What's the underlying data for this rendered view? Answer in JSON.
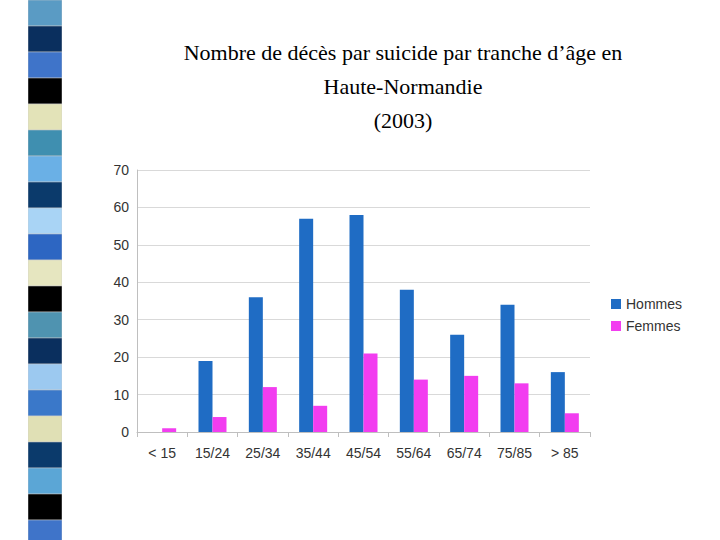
{
  "chart_data": {
    "type": "bar",
    "title": "Nombre de décès par suicide par tranche d’âge en\nHaute-Normandie\n(2003)",
    "categories": [
      "< 15",
      "15/24",
      "25/34",
      "35/44",
      "45/54",
      "55/64",
      "65/74",
      "75/85",
      "> 85"
    ],
    "series": [
      {
        "name": "Hommes",
        "color": "#1f6cc4",
        "values": [
          0,
          19,
          36,
          57,
          58,
          38,
          26,
          34,
          16
        ]
      },
      {
        "name": "Femmes",
        "color": "#f23df0",
        "values": [
          1,
          4,
          12,
          7,
          21,
          14,
          15,
          13,
          5
        ]
      }
    ],
    "ylim": [
      0,
      70
    ],
    "yticks": [
      0,
      10,
      20,
      30,
      40,
      50,
      60,
      70
    ],
    "grid": true,
    "legend": "right"
  }
}
